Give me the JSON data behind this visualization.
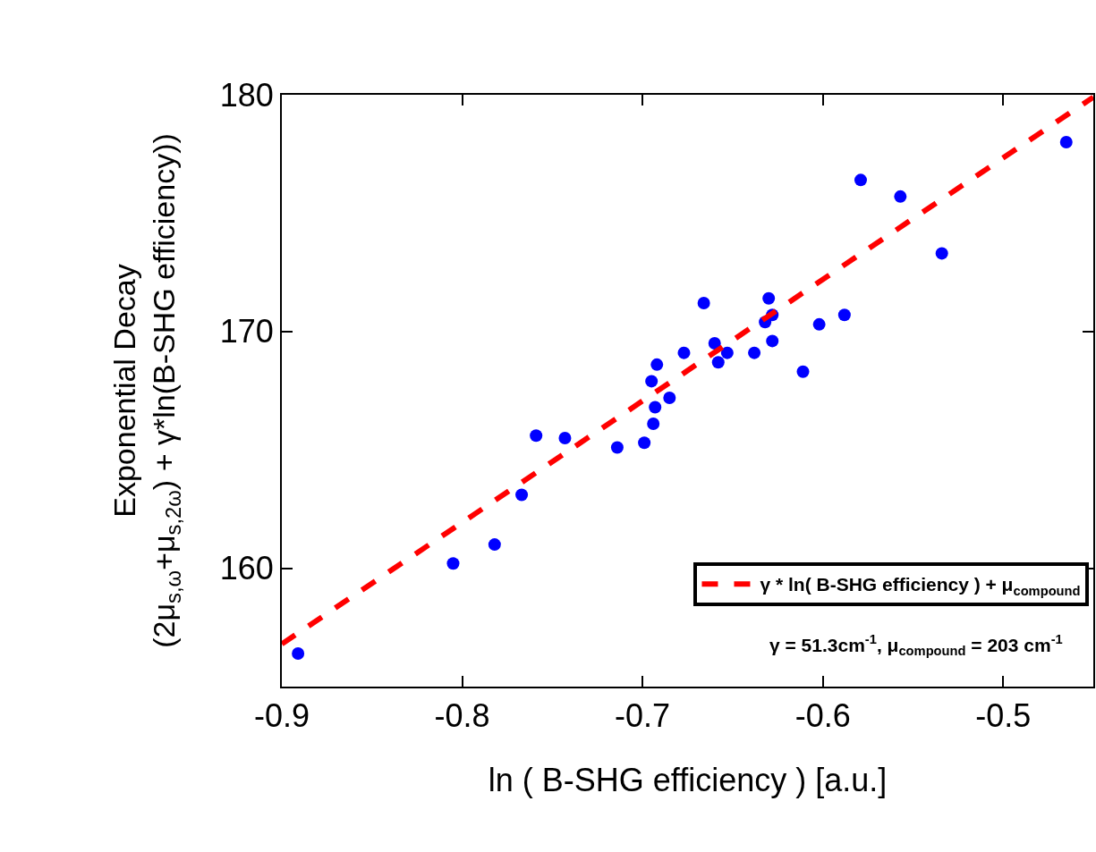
{
  "chart_data": {
    "type": "scatter",
    "xlabel": "ln ( B-SHG efficiency ) [a.u.]",
    "ylabel": "Exponential Decay\n(2μ$_{s,ω}$+μ$_{s,2ω}$) + γ*ln(B-SHG efficiency))",
    "xlim": [
      -0.9,
      -0.45
    ],
    "xticks": [
      -0.9,
      -0.8,
      -0.7,
      -0.6,
      -0.5
    ],
    "ylim": [
      155,
      180
    ],
    "yticks": [
      160,
      170,
      180
    ],
    "grid": false,
    "legend": "bottom right",
    "marker": "circle",
    "annotations": [
      "γ = 51.3cm$^{-1}$, μ$_{compound}$ = 203 cm$^{-1}$"
    ],
    "series": [
      {
        "color": "#0000ff",
        "x": [
          -0.891,
          -0.805,
          -0.782,
          -0.767,
          -0.759,
          -0.743,
          -0.714,
          -0.699,
          -0.694,
          -0.693,
          -0.695,
          -0.692,
          -0.685,
          -0.677,
          -0.666,
          -0.66,
          -0.653,
          -0.658,
          -0.638,
          -0.63,
          -0.628,
          -0.632,
          -0.628,
          -0.611,
          -0.602,
          -0.588,
          -0.579,
          -0.557,
          -0.534,
          -0.465
        ],
        "values": [
          156.4,
          160.2,
          161.0,
          163.1,
          165.6,
          165.5,
          165.1,
          165.3,
          166.1,
          166.8,
          167.9,
          168.6,
          167.2,
          169.1,
          171.2,
          169.5,
          169.1,
          168.7,
          169.1,
          171.4,
          170.7,
          170.4,
          169.6,
          168.3,
          170.3,
          170.7,
          176.4,
          175.7,
          173.3,
          178.0
        ]
      },
      {
        "type": "line",
        "name": "γ * ln( B-SHG efficiency ) + μ$_{compound}$",
        "color": "#ff0000",
        "line_style": "dashed",
        "marker": "none",
        "x": [
          -0.9,
          -0.45
        ],
        "values": [
          156.8,
          179.9
        ]
      }
    ]
  }
}
